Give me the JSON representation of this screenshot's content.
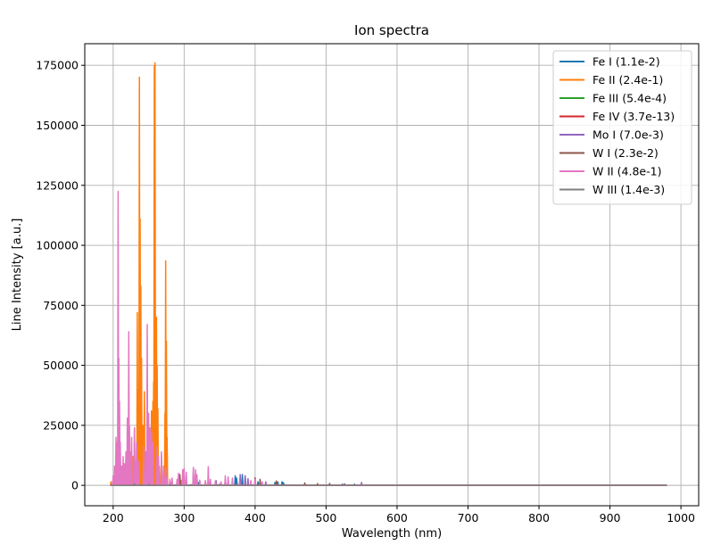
{
  "chart_data": {
    "type": "line",
    "title": "Ion spectra",
    "xlabel": "Wavelength (nm)",
    "ylabel": "Line Intensity [a.u.]",
    "xlim": [
      160,
      1025
    ],
    "ylim": [
      -8500,
      184000
    ],
    "xticks": [
      200,
      300,
      400,
      500,
      600,
      700,
      800,
      900,
      1000
    ],
    "yticks": [
      0,
      25000,
      50000,
      75000,
      100000,
      125000,
      150000,
      175000
    ],
    "grid": true,
    "legend_position": "top-right",
    "baseline_range": [
      196,
      980
    ],
    "series": [
      {
        "name": "Fe I (1.1e-2)",
        "color": "#1f77b4",
        "peaks": [
          [
            248,
            1500
          ],
          [
            259,
            1800
          ],
          [
            272,
            1200
          ],
          [
            300,
            1500
          ],
          [
            320,
            1200
          ],
          [
            358,
            2200
          ],
          [
            372,
            4000
          ],
          [
            374,
            3000
          ],
          [
            382,
            4500
          ],
          [
            386,
            3800
          ],
          [
            404,
            1500
          ],
          [
            428,
            1200
          ],
          [
            432,
            1400
          ],
          [
            438,
            1500
          ],
          [
            440,
            1100
          ],
          [
            526,
            600
          ],
          [
            540,
            500
          ]
        ]
      },
      {
        "name": "Fe II (2.4e-1)",
        "color": "#ff7f0e",
        "peaks": [
          [
            197,
            1500
          ],
          [
            200,
            3000
          ],
          [
            205,
            4000
          ],
          [
            228,
            12000
          ],
          [
            230,
            23000
          ],
          [
            232,
            10000
          ],
          [
            234,
            72000
          ],
          [
            236,
            40000
          ],
          [
            237,
            170000
          ],
          [
            238,
            111000
          ],
          [
            239,
            83000
          ],
          [
            240,
            53000
          ],
          [
            242,
            25000
          ],
          [
            244,
            39000
          ],
          [
            248,
            30000
          ],
          [
            250,
            15000
          ],
          [
            252,
            12000
          ],
          [
            254,
            31000
          ],
          [
            256,
            35000
          ],
          [
            257,
            43000
          ],
          [
            258,
            175000
          ],
          [
            259,
            176000
          ],
          [
            260,
            60000
          ],
          [
            261,
            70000
          ],
          [
            262,
            50000
          ],
          [
            263,
            32000
          ],
          [
            265,
            8000
          ],
          [
            268,
            12000
          ],
          [
            271,
            8000
          ],
          [
            273,
            30000
          ],
          [
            274,
            93500
          ],
          [
            275,
            60000
          ],
          [
            276,
            20000
          ],
          [
            296,
            2000
          ],
          [
            298,
            3500
          ],
          [
            330,
            1500
          ]
        ]
      },
      {
        "name": "Fe III (5.4e-4)",
        "color": "#2ca02c",
        "peaks": [
          [
            350,
            500
          ],
          [
            400,
            600
          ]
        ]
      },
      {
        "name": "Fe IV (3.7e-13)",
        "color": "#d62728",
        "peaks": [
          [
            300,
            200
          ]
        ]
      },
      {
        "name": "Mo I (7.0e-3)",
        "color": "#9467bd",
        "peaks": [
          [
            313,
            5500
          ],
          [
            317,
            4000
          ],
          [
            345,
            2000
          ],
          [
            379,
            4500
          ],
          [
            386,
            4000
          ],
          [
            390,
            2800
          ],
          [
            415,
            1500
          ],
          [
            550,
            1200
          ]
        ]
      },
      {
        "name": "W I (2.3e-2)",
        "color": "#8c564b",
        "peaks": [
          [
            294,
            4500
          ],
          [
            400,
            3200
          ],
          [
            407,
            2500
          ],
          [
            430,
            1800
          ],
          [
            470,
            1000
          ],
          [
            488,
            700
          ],
          [
            505,
            800
          ],
          [
            523,
            500
          ]
        ]
      },
      {
        "name": "W II (4.8e-1)",
        "color": "#e377c2",
        "peaks": [
          [
            200,
            4000
          ],
          [
            202,
            8000
          ],
          [
            204,
            20000
          ],
          [
            206,
            18000
          ],
          [
            207,
            122500
          ],
          [
            208,
            53000
          ],
          [
            209,
            35000
          ],
          [
            210,
            18000
          ],
          [
            212,
            8000
          ],
          [
            214,
            12000
          ],
          [
            216,
            9000
          ],
          [
            218,
            14000
          ],
          [
            220,
            28000
          ],
          [
            222,
            64000
          ],
          [
            223,
            25000
          ],
          [
            224,
            14000
          ],
          [
            226,
            20000
          ],
          [
            230,
            24000
          ],
          [
            233,
            18000
          ],
          [
            236,
            10000
          ],
          [
            243,
            16000
          ],
          [
            246,
            14000
          ],
          [
            248,
            67000
          ],
          [
            250,
            30000
          ],
          [
            252,
            24000
          ],
          [
            254,
            22000
          ],
          [
            256,
            18000
          ],
          [
            262,
            16000
          ],
          [
            264,
            12000
          ],
          [
            268,
            14000
          ],
          [
            271,
            8000
          ],
          [
            274,
            7000
          ],
          [
            276,
            3000
          ],
          [
            280,
            2500
          ],
          [
            283,
            3000
          ],
          [
            290,
            2500
          ],
          [
            292,
            5000
          ],
          [
            298,
            6500
          ],
          [
            300,
            7000
          ],
          [
            303,
            5500
          ],
          [
            313,
            7500
          ],
          [
            316,
            6500
          ],
          [
            318,
            4500
          ],
          [
            322,
            2200
          ],
          [
            330,
            2000
          ],
          [
            334,
            7800
          ],
          [
            337,
            2500
          ],
          [
            344,
            1800
          ],
          [
            352,
            1500
          ],
          [
            358,
            4000
          ],
          [
            362,
            3500
          ],
          [
            368,
            3000
          ],
          [
            378,
            1500
          ],
          [
            394,
            2000
          ],
          [
            400,
            2500
          ],
          [
            410,
            1500
          ]
        ]
      },
      {
        "name": "W III (1.4e-3)",
        "color": "#7f7f7f",
        "peaks": [
          [
            230,
            600
          ],
          [
            250,
            500
          ],
          [
            280,
            400
          ],
          [
            310,
            300
          ]
        ]
      }
    ]
  }
}
